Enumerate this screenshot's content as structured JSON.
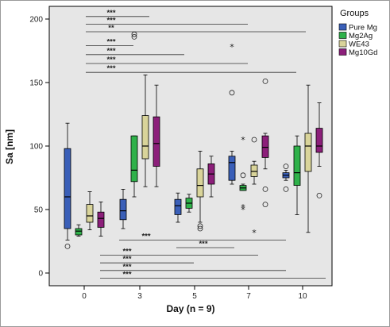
{
  "chart_data": {
    "type": "boxplot",
    "xlabel": "Day (n = 9)",
    "ylabel": "Sa [nm]",
    "ylim": [
      -10,
      210
    ],
    "yticks": [
      0,
      50,
      100,
      150,
      200
    ],
    "xticks": [
      "0",
      "3",
      "5",
      "7",
      "10"
    ],
    "grid": false,
    "legend_title": "Groups",
    "legend_position": "top-right",
    "series": [
      {
        "name": "Pure Mg",
        "color": "#3a5fb8"
      },
      {
        "name": "Mg2Ag",
        "color": "#2fb14a"
      },
      {
        "name": "WE43",
        "color": "#d9d49a"
      },
      {
        "name": "Mg10Gd",
        "color": "#8c1f7a"
      }
    ],
    "boxes": [
      {
        "day": "0",
        "group": 0,
        "min": 26,
        "q1": 35,
        "median": 60,
        "q3": 98,
        "max": 118
      },
      {
        "day": "0",
        "group": 1,
        "min": 29,
        "q1": 30,
        "median": 33,
        "q3": 35,
        "max": 38
      },
      {
        "day": "0",
        "group": 2,
        "min": 34,
        "q1": 40,
        "median": 45,
        "q3": 54,
        "max": 64
      },
      {
        "day": "0",
        "group": 3,
        "min": 29,
        "q1": 36,
        "median": 43,
        "q3": 48,
        "max": 56
      },
      {
        "day": "3",
        "group": 0,
        "min": 35,
        "q1": 42,
        "median": 49,
        "q3": 58,
        "max": 66
      },
      {
        "day": "3",
        "group": 1,
        "min": 60,
        "q1": 72,
        "median": 81,
        "q3": 108,
        "max": 108
      },
      {
        "day": "3",
        "group": 2,
        "min": 68,
        "q1": 90,
        "median": 100,
        "q3": 124,
        "max": 156
      },
      {
        "day": "3",
        "group": 3,
        "min": 68,
        "q1": 84,
        "median": 102,
        "q3": 123,
        "max": 148
      },
      {
        "day": "5",
        "group": 0,
        "min": 40,
        "q1": 46,
        "median": 53,
        "q3": 58,
        "max": 63
      },
      {
        "day": "5",
        "group": 1,
        "min": 48,
        "q1": 51,
        "median": 55,
        "q3": 59,
        "max": 62
      },
      {
        "day": "5",
        "group": 2,
        "min": 40,
        "q1": 60,
        "median": 69,
        "q3": 82,
        "max": 96
      },
      {
        "day": "5",
        "group": 3,
        "min": 60,
        "q1": 70,
        "median": 78,
        "q3": 86,
        "max": 92
      },
      {
        "day": "7",
        "group": 0,
        "min": 70,
        "q1": 73,
        "median": 87,
        "q3": 92,
        "max": 96
      },
      {
        "day": "7",
        "group": 1,
        "min": 65,
        "q1": 65,
        "median": 67,
        "q3": 69,
        "max": 70
      },
      {
        "day": "7",
        "group": 2,
        "min": 70,
        "q1": 76,
        "median": 80,
        "q3": 85,
        "max": 88
      },
      {
        "day": "7",
        "group": 3,
        "min": 82,
        "q1": 91,
        "median": 99,
        "q3": 108,
        "max": 110
      },
      {
        "day": "10",
        "group": 0,
        "min": 73,
        "q1": 75,
        "median": 77,
        "q3": 79,
        "max": 81
      },
      {
        "day": "10",
        "group": 1,
        "min": 46,
        "q1": 69,
        "median": 79,
        "q3": 100,
        "max": 108
      },
      {
        "day": "10",
        "group": 2,
        "min": 32,
        "q1": 80,
        "median": 100,
        "q3": 110,
        "max": 148
      },
      {
        "day": "10",
        "group": 3,
        "min": 84,
        "q1": 95,
        "median": 100,
        "q3": 114,
        "max": 134
      }
    ],
    "outliers": [
      {
        "day": "0",
        "group": 0,
        "value": 21,
        "marker": "circle"
      },
      {
        "day": "3",
        "group": 1,
        "value": 186,
        "marker": "circle"
      },
      {
        "day": "3",
        "group": 1,
        "value": 188,
        "marker": "circle"
      },
      {
        "day": "5",
        "group": 2,
        "value": 35,
        "marker": "circle"
      },
      {
        "day": "5",
        "group": 2,
        "value": 37,
        "marker": "circle"
      },
      {
        "day": "7",
        "group": 0,
        "value": 178,
        "marker": "star"
      },
      {
        "day": "7",
        "group": 0,
        "value": 142,
        "marker": "circle"
      },
      {
        "day": "7",
        "group": 1,
        "value": 105,
        "marker": "star"
      },
      {
        "day": "7",
        "group": 1,
        "value": 77,
        "marker": "circle"
      },
      {
        "day": "7",
        "group": 1,
        "value": 52,
        "marker": "star"
      },
      {
        "day": "7",
        "group": 1,
        "value": 50,
        "marker": "star"
      },
      {
        "day": "7",
        "group": 2,
        "value": 105,
        "marker": "circle"
      },
      {
        "day": "7",
        "group": 2,
        "value": 32,
        "marker": "star"
      },
      {
        "day": "7",
        "group": 3,
        "value": 151,
        "marker": "circle"
      },
      {
        "day": "7",
        "group": 3,
        "value": 66,
        "marker": "circle"
      },
      {
        "day": "7",
        "group": 3,
        "value": 54,
        "marker": "circle"
      },
      {
        "day": "10",
        "group": 0,
        "value": 84,
        "marker": "circle"
      },
      {
        "day": "10",
        "group": 0,
        "value": 66,
        "marker": "circle"
      },
      {
        "day": "10",
        "group": 3,
        "value": 61,
        "marker": "circle"
      }
    ],
    "significance_bars": [
      {
        "label": "***",
        "y": 202,
        "from_day": "0",
        "to_day": "3"
      },
      {
        "label": "***",
        "y": 196,
        "from_day": "0",
        "to_day": "7"
      },
      {
        "label": "**",
        "y": 190,
        "from_day": "0",
        "to_day": "10"
      },
      {
        "label": "***",
        "y": 179,
        "from_day": "0",
        "to_day": "3"
      },
      {
        "label": "***",
        "y": 172,
        "from_day": "0",
        "to_day": "5"
      },
      {
        "label": "***",
        "y": 165,
        "from_day": "0",
        "to_day": "7"
      },
      {
        "label": "***",
        "y": 158,
        "from_day": "0",
        "to_day": "10"
      },
      {
        "label": "***",
        "y": 26,
        "from_day": "3",
        "to_day": "10"
      },
      {
        "label": "***",
        "y": 20,
        "from_day": "5",
        "to_day": "7"
      },
      {
        "label": "***",
        "y": 14,
        "from_day": "0",
        "to_day": "7"
      },
      {
        "label": "***",
        "y": 8,
        "from_day": "0",
        "to_day": "5"
      },
      {
        "label": "***",
        "y": 2,
        "from_day": "0",
        "to_day": "10"
      },
      {
        "label": "***",
        "y": -4,
        "from_day": "0",
        "to_day": "10"
      }
    ]
  }
}
